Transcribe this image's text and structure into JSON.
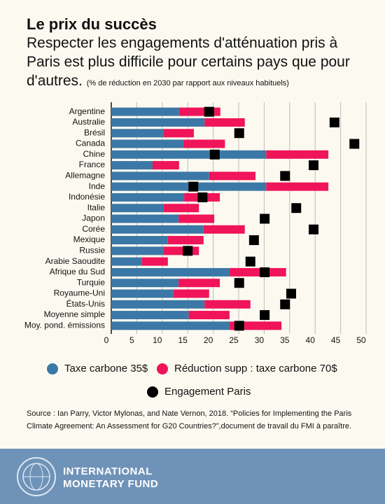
{
  "chart_data": {
    "type": "bar",
    "orientation": "horizontal",
    "stacked": true,
    "title": "Le prix du succès",
    "subtitle": "Respecter les engagements d'atténuation pris à Paris est plus difficile pour certains pays que pour d'autres.",
    "note": "(% de réduction en 2030 par rapport aux niveaux habituels)",
    "categories": [
      "Argentine",
      "Australie",
      "Brésil",
      "Canada",
      "Chine",
      "France",
      "Allemagne",
      "Inde",
      "Indonésie",
      "Italie",
      "Japon",
      "Corée",
      "Mexique",
      "Russie",
      "Arabie Saoudite",
      "Afrique du Sud",
      "Turquie",
      "Royaume-Uni",
      "États-Unis",
      "Moyenne simple",
      "Moy. pond. émissions"
    ],
    "series": [
      {
        "name": "Taxe carbone 35$",
        "color": "#3b78a7",
        "values": [
          13.3,
          18.3,
          10.2,
          14.1,
          30.4,
          8.1,
          19.2,
          30.4,
          14.3,
          10.2,
          13.2,
          18.1,
          11.1,
          10.2,
          6.0,
          23.2,
          13.2,
          12.2,
          18.3,
          15.2,
          23.2
        ]
      },
      {
        "name": "Réduction supp : taxe carbone 70$",
        "color": "#f0145a",
        "values": [
          8.1,
          7.9,
          6.0,
          8.2,
          12.2,
          5.2,
          9.1,
          12.2,
          7.0,
          7.0,
          7.0,
          8.1,
          7.0,
          7.0,
          5.1,
          11.1,
          8.1,
          7.0,
          9.0,
          8.0,
          10.2
        ]
      },
      {
        "name": "Engagement Paris",
        "color": "#000000",
        "type": "scatter",
        "values": [
          19.2,
          43.8,
          25.1,
          47.7,
          20.3,
          39.7,
          34.1,
          16.1,
          17.9,
          36.3,
          30.1,
          39.7,
          28.0,
          15.0,
          27.3,
          30.1,
          25.1,
          35.3,
          34.1,
          30.1,
          25.1
        ]
      }
    ],
    "xlim": [
      0,
      50
    ],
    "xticks": [
      0,
      5,
      10,
      15,
      20,
      25,
      30,
      35,
      40,
      45,
      50
    ],
    "grid": true,
    "source": "Source : Ian Parry, Victor Mylonas, and Nate Vernon, 2018. “Policies for Implementing the Paris Climate Agreement: An Assessment for G20 Countries?”,document de travail du FMI à paraître."
  },
  "footer": {
    "line1": "INTERNATIONAL",
    "line2": "MONETARY FUND"
  }
}
